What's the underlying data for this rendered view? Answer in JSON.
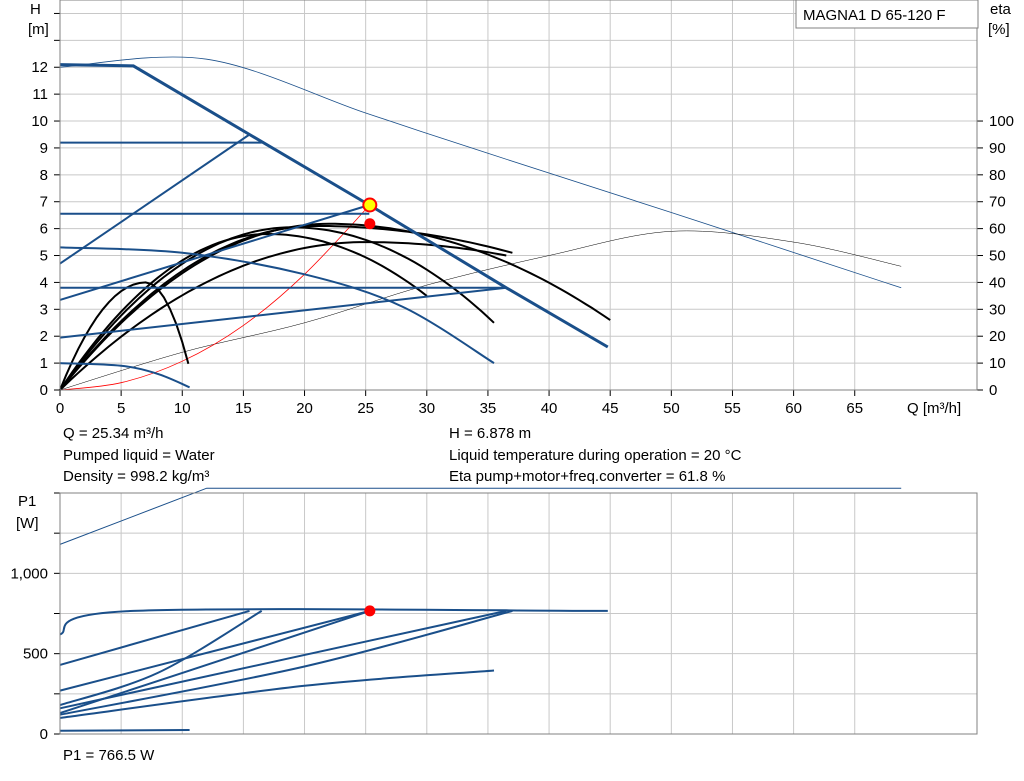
{
  "pump_model": "MAGNA1 D 65-120 F",
  "info": {
    "flow": "Q = 25.34 m³/h",
    "liquid": "Pumped liquid = Water",
    "density": "Density = 998.2 kg/m³",
    "head": "H = 6.878 m",
    "temperature": "Liquid temperature during operation = 20 °C",
    "eta": "Eta pump+motor+freq.converter = 61.8 %",
    "power": "P1 = 766.5 W"
  },
  "colors": {
    "grid": "#c8c8c8",
    "curve_blue": "#1a4f8a",
    "curve_black": "#000000",
    "duty_point": "#ff0000",
    "marker_fill": "#ffff00"
  },
  "chart_data": [
    {
      "type": "line",
      "name": "head-chart",
      "x_label": "Q [m³/h]",
      "y_label_left": [
        "H",
        "[m]"
      ],
      "y_label_right": [
        "eta",
        "[%]"
      ],
      "xlim": [
        0,
        75
      ],
      "ylim": [
        0,
        14.5
      ],
      "eta_lim": [
        0,
        145
      ],
      "x_ticks": [
        0,
        5,
        10,
        15,
        20,
        25,
        30,
        35,
        40,
        45,
        50,
        55,
        60,
        65
      ],
      "y_ticks": [
        0,
        1,
        2,
        3,
        4,
        5,
        6,
        7,
        8,
        9,
        10,
        11,
        12
      ],
      "eta_ticks": [
        0,
        10,
        20,
        30,
        40,
        50,
        60,
        70,
        80,
        90,
        100
      ],
      "grid": true,
      "head_curves": [
        {
          "kind": "max",
          "points": [
            [
              0,
              12.1
            ],
            [
              6,
              12.05
            ],
            [
              15.5,
              9.5
            ],
            [
              25.3,
              6.88
            ],
            [
              36.5,
              3.8
            ],
            [
              44.8,
              1.6
            ]
          ]
        },
        {
          "kind": "limit",
          "points": [
            [
              0,
              4.7
            ],
            [
              15.5,
              9.5
            ]
          ]
        },
        {
          "kind": "limit",
          "points": [
            [
              0,
              3.35
            ],
            [
              25.3,
              6.88
            ]
          ]
        },
        {
          "kind": "limit",
          "points": [
            [
              0,
              1.95
            ],
            [
              36.5,
              3.8
            ]
          ]
        },
        {
          "kind": "const",
          "points": [
            [
              0,
              9.2
            ],
            [
              16.5,
              9.2
            ]
          ]
        },
        {
          "kind": "const",
          "points": [
            [
              0,
              6.55
            ],
            [
              25.3,
              6.55
            ]
          ]
        },
        {
          "kind": "const",
          "points": [
            [
              0,
              3.8
            ],
            [
              36.5,
              3.8
            ]
          ]
        },
        {
          "kind": "prop",
          "points": [
            [
              0,
              5.3
            ],
            [
              10,
              5.1
            ],
            [
              20,
              4.3
            ],
            [
              28,
              3.1
            ],
            [
              35.5,
              1.0
            ]
          ]
        },
        {
          "kind": "prop",
          "points": [
            [
              0,
              1.0
            ],
            [
              5,
              0.9
            ],
            [
              8,
              0.6
            ],
            [
              10.6,
              0.1
            ]
          ]
        }
      ],
      "max_eta_curve": [
        [
          0,
          12.0
        ],
        [
          12,
          12.3
        ],
        [
          25,
          10.3
        ],
        [
          35,
          8.8
        ],
        [
          50,
          6.6
        ],
        [
          68.8,
          3.8
        ]
      ],
      "max_p_curve_thin": [
        [
          0,
          0.0
        ],
        [
          10,
          1.4
        ],
        [
          20,
          2.5
        ],
        [
          30,
          3.9
        ],
        [
          40,
          5.0
        ],
        [
          50,
          5.9
        ],
        [
          60,
          5.5
        ],
        [
          68.8,
          4.6
        ]
      ],
      "system_curve": [
        [
          0,
          0.0
        ],
        [
          5,
          0.27
        ],
        [
          10,
          1.07
        ],
        [
          15,
          2.4
        ],
        [
          20,
          4.3
        ],
        [
          25.34,
          6.878
        ]
      ],
      "eta_curves": [
        {
          "peak": 61.8,
          "q_peak": 22,
          "q_end": 45,
          "end": 26
        },
        {
          "peak": 61,
          "q_peak": 21,
          "q_end": 37,
          "end": 51
        },
        {
          "peak": 60.5,
          "q_peak": 19,
          "q_end": 35.5,
          "end": 25
        },
        {
          "peak": 58,
          "q_peak": 17,
          "q_end": 30,
          "end": 35
        },
        {
          "peak": 55,
          "q_peak": 25,
          "q_end": 36.5,
          "end": 50
        },
        {
          "peak": 40,
          "q_peak": 7,
          "q_end": 10.6,
          "end": 8
        }
      ],
      "duty_point_head": {
        "q": 25.34,
        "h": 6.878
      },
      "duty_point_eta": {
        "q": 25.34,
        "eta": 61.8
      }
    },
    {
      "type": "line",
      "name": "power-chart",
      "y_label_left": [
        "P1",
        "[W]"
      ],
      "xlim": [
        0,
        75
      ],
      "ylim": [
        0,
        1500
      ],
      "y_ticks": [
        0,
        500,
        1000
      ],
      "y_tick_labels": [
        "0",
        "500",
        "1,000"
      ],
      "grid": true,
      "power_curves": [
        {
          "points": [
            [
              0,
              1180
            ],
            [
              12,
              1530
            ],
            [
              68.8,
              1530
            ]
          ],
          "thin": true
        },
        {
          "points": [
            [
              0,
              620
            ],
            [
              6,
              766
            ],
            [
              44.8,
              766
            ]
          ]
        },
        {
          "points": [
            [
              0,
              180
            ],
            [
              8,
              380
            ],
            [
              16.5,
              766
            ]
          ]
        },
        {
          "points": [
            [
              0,
              130
            ],
            [
              10,
              380
            ],
            [
              25.34,
              766
            ]
          ]
        },
        {
          "points": [
            [
              0,
              120
            ],
            [
              20,
              420
            ],
            [
              37,
              766
            ]
          ]
        },
        {
          "points": [
            [
              0,
              430
            ],
            [
              15.5,
              766
            ]
          ]
        },
        {
          "points": [
            [
              0,
              270
            ],
            [
              25.34,
              766
            ]
          ]
        },
        {
          "points": [
            [
              0,
              160
            ],
            [
              36.5,
              766
            ]
          ]
        },
        {
          "points": [
            [
              0,
              100
            ],
            [
              20,
              300
            ],
            [
              35.5,
              395
            ]
          ]
        },
        {
          "points": [
            [
              0,
              20
            ],
            [
              10.6,
              25
            ]
          ]
        }
      ],
      "duty_point": {
        "q": 25.34,
        "p": 766.5
      }
    }
  ]
}
